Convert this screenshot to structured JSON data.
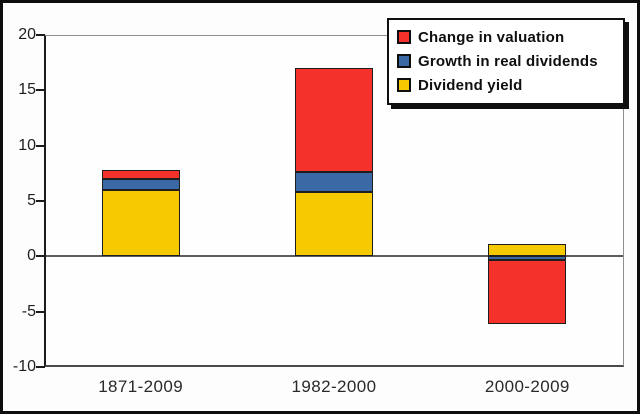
{
  "window": {
    "background_color": "#fdfdfd",
    "outer_border_color": "#0d0d0d"
  },
  "chart_data": {
    "type": "bar",
    "stacked": true,
    "title": "",
    "xlabel": "",
    "ylabel": "",
    "categories": [
      "1871-2009",
      "1982-2000",
      "2000-2009"
    ],
    "series": [
      {
        "name": "Dividend yield",
        "color": "#F7C900",
        "values": [
          6.0,
          5.8,
          1.1
        ]
      },
      {
        "name": "Growth in real dividends",
        "color": "#3A69A5",
        "values": [
          1.0,
          1.8,
          -0.3
        ]
      },
      {
        "name": "Change in valuation",
        "color": "#F4322B",
        "values": [
          0.8,
          9.4,
          -5.8
        ]
      }
    ],
    "totals": [
      7.8,
      17.0,
      -5.0
    ],
    "ylim": [
      -10,
      20
    ],
    "yticks": [
      20,
      15,
      10,
      5,
      0,
      -5,
      -10
    ],
    "grid": false,
    "zero_line": true,
    "legend": {
      "position": "top-right",
      "entries": [
        {
          "label": "Change in valuation",
          "color": "#F4322B"
        },
        {
          "label": "Growth in real dividends",
          "color": "#3A69A5"
        },
        {
          "label": "Dividend yield",
          "color": "#F7C900"
        }
      ]
    },
    "colors": {
      "zero_line": "#5d5d5d",
      "axis": "#1c1c1c",
      "segment_border": "#1e1e1e"
    }
  }
}
